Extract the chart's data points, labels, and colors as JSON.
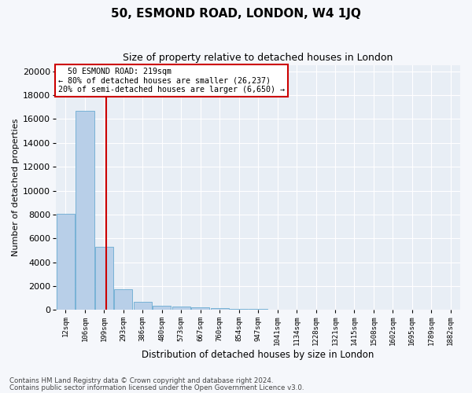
{
  "title1": "50, ESMOND ROAD, LONDON, W4 1JQ",
  "title2": "Size of property relative to detached houses in London",
  "xlabel": "Distribution of detached houses by size in London",
  "ylabel": "Number of detached properties",
  "bin_labels": [
    "12sqm",
    "106sqm",
    "199sqm",
    "293sqm",
    "386sqm",
    "480sqm",
    "573sqm",
    "667sqm",
    "760sqm",
    "854sqm",
    "947sqm",
    "1041sqm",
    "1134sqm",
    "1228sqm",
    "1321sqm",
    "1415sqm",
    "1508sqm",
    "1602sqm",
    "1695sqm",
    "1789sqm",
    "1882sqm"
  ],
  "bar_heights": [
    8050,
    16700,
    5300,
    1750,
    700,
    350,
    270,
    190,
    150,
    110,
    80,
    55,
    40,
    30,
    22,
    15,
    12,
    9,
    7,
    5,
    3
  ],
  "bar_color": "#b8cfe8",
  "bar_edgecolor": "#6aabd2",
  "property_label": "50 ESMOND ROAD: 219sqm",
  "annotation_line1": "← 80% of detached houses are smaller (26,237)",
  "annotation_line2": "20% of semi-detached houses are larger (6,650) →",
  "vline_color": "#cc0000",
  "vline_bin_index": 2.12,
  "ylim": [
    0,
    20500
  ],
  "yticks": [
    0,
    2000,
    4000,
    6000,
    8000,
    10000,
    12000,
    14000,
    16000,
    18000,
    20000
  ],
  "ytick_labels": [
    "0",
    "2000",
    "4000",
    "6000",
    "8000",
    "10000",
    "12000",
    "14000",
    "16000",
    "18000",
    "20000"
  ],
  "footnote1": "Contains HM Land Registry data © Crown copyright and database right 2024.",
  "footnote2": "Contains public sector information licensed under the Open Government Licence v3.0.",
  "bg_color": "#f5f7fb",
  "plot_bg_color": "#e8eef5",
  "grid_color": "#ffffff",
  "annotation_box_facecolor": "#ffffff",
  "annotation_box_edgecolor": "#cc0000",
  "title1_fontsize": 11,
  "title2_fontsize": 9
}
